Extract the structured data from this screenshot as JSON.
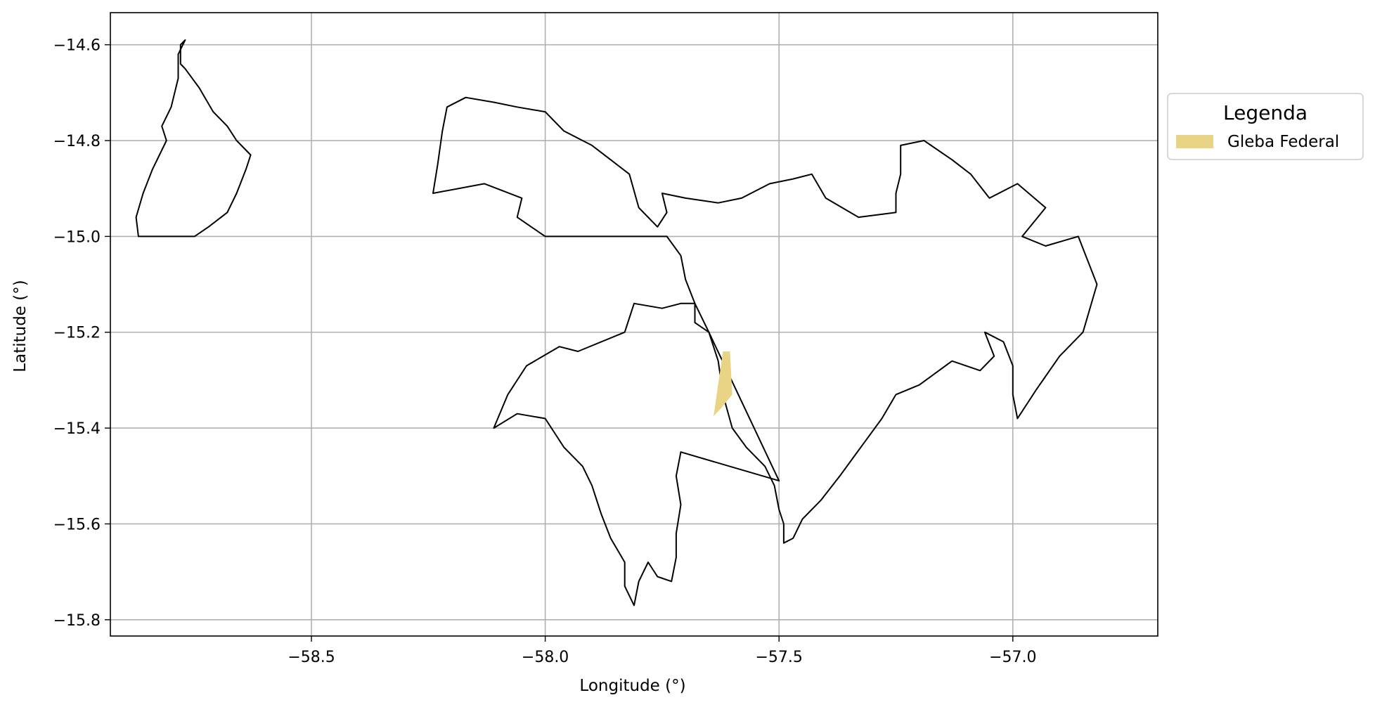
{
  "chart_data": {
    "type": "map",
    "xlabel": "Longitude (°)",
    "ylabel": "Latitude (°)",
    "xlim": [
      -58.93,
      -56.69
    ],
    "ylim": [
      -15.834,
      -14.533
    ],
    "x_ticks": [
      -58.5,
      -58.0,
      -57.5,
      -57.0
    ],
    "x_tick_labels": [
      "−58.5",
      "−58.0",
      "−57.5",
      "−57.0"
    ],
    "y_ticks": [
      -14.6,
      -14.8,
      -15.0,
      -15.2,
      -15.4,
      -15.6,
      -15.8
    ],
    "y_tick_labels": [
      "−14.6",
      "−14.8",
      "−15.0",
      "−15.2",
      "−15.4",
      "−15.6",
      "−15.8"
    ],
    "grid": true,
    "legend": {
      "title": "Legenda",
      "position": "outside-right",
      "entries": [
        {
          "label": "Gleba Federal",
          "color": "#e8d484"
        }
      ]
    },
    "boundary_color": "#000000",
    "grid_color": "#b0b0b0",
    "layers": [
      {
        "name": "boundary-west",
        "kind": "outline",
        "coords": [
          [
            -58.77,
            -14.59
          ],
          [
            -58.78,
            -14.6
          ],
          [
            -58.78,
            -14.64
          ],
          [
            -58.77,
            -14.65
          ],
          [
            -58.74,
            -14.69
          ],
          [
            -58.71,
            -14.74
          ],
          [
            -58.68,
            -14.77
          ],
          [
            -58.66,
            -14.8
          ],
          [
            -58.63,
            -14.83
          ],
          [
            -58.64,
            -14.86
          ],
          [
            -58.66,
            -14.91
          ],
          [
            -58.68,
            -14.95
          ],
          [
            -58.72,
            -14.98
          ],
          [
            -58.75,
            -15.0
          ],
          [
            -58.87,
            -15.0
          ],
          [
            -58.875,
            -14.96
          ],
          [
            -58.86,
            -14.91
          ],
          [
            -58.84,
            -14.86
          ],
          [
            -58.81,
            -14.8
          ],
          [
            -58.82,
            -14.77
          ],
          [
            -58.8,
            -14.73
          ],
          [
            -58.785,
            -14.67
          ],
          [
            -58.785,
            -14.62
          ],
          [
            -58.77,
            -14.59
          ]
        ]
      },
      {
        "name": "boundary-main",
        "kind": "outline",
        "coords": [
          [
            -58.24,
            -14.91
          ],
          [
            -58.13,
            -14.89
          ],
          [
            -58.05,
            -14.92
          ],
          [
            -58.06,
            -14.96
          ],
          [
            -58.03,
            -14.98
          ],
          [
            -58.0,
            -15.0
          ],
          [
            -57.74,
            -15.0
          ],
          [
            -57.71,
            -15.04
          ],
          [
            -57.7,
            -15.09
          ],
          [
            -57.68,
            -15.14
          ],
          [
            -57.68,
            -15.18
          ],
          [
            -57.65,
            -15.2
          ],
          [
            -57.63,
            -15.26
          ],
          [
            -57.62,
            -15.33
          ],
          [
            -57.6,
            -15.4
          ],
          [
            -57.57,
            -15.44
          ],
          [
            -57.53,
            -15.48
          ],
          [
            -57.51,
            -15.52
          ],
          [
            -57.5,
            -15.57
          ],
          [
            -57.49,
            -15.6
          ],
          [
            -57.49,
            -15.64
          ],
          [
            -57.47,
            -15.63
          ],
          [
            -57.45,
            -15.59
          ],
          [
            -57.41,
            -15.55
          ],
          [
            -57.37,
            -15.5
          ],
          [
            -57.34,
            -15.46
          ],
          [
            -57.31,
            -15.42
          ],
          [
            -57.28,
            -15.38
          ],
          [
            -57.25,
            -15.33
          ],
          [
            -57.2,
            -15.31
          ],
          [
            -57.13,
            -15.26
          ],
          [
            -57.07,
            -15.28
          ],
          [
            -57.04,
            -15.25
          ],
          [
            -57.06,
            -15.2
          ],
          [
            -57.02,
            -15.22
          ],
          [
            -57.0,
            -15.27
          ],
          [
            -57.0,
            -15.33
          ],
          [
            -56.99,
            -15.38
          ],
          [
            -56.95,
            -15.32
          ],
          [
            -56.9,
            -15.25
          ],
          [
            -56.85,
            -15.2
          ],
          [
            -56.82,
            -15.1
          ],
          [
            -56.84,
            -15.05
          ],
          [
            -56.86,
            -15.0
          ],
          [
            -56.93,
            -15.02
          ],
          [
            -56.98,
            -15.0
          ],
          [
            -56.93,
            -14.94
          ],
          [
            -56.99,
            -14.89
          ],
          [
            -57.05,
            -14.92
          ],
          [
            -57.09,
            -14.87
          ],
          [
            -57.13,
            -14.84
          ],
          [
            -57.19,
            -14.8
          ],
          [
            -57.24,
            -14.81
          ],
          [
            -57.24,
            -14.87
          ],
          [
            -57.25,
            -14.91
          ],
          [
            -57.25,
            -14.95
          ],
          [
            -57.33,
            -14.96
          ],
          [
            -57.4,
            -14.92
          ],
          [
            -57.43,
            -14.87
          ],
          [
            -57.47,
            -14.88
          ],
          [
            -57.52,
            -14.89
          ],
          [
            -57.58,
            -14.92
          ],
          [
            -57.63,
            -14.93
          ],
          [
            -57.7,
            -14.92
          ],
          [
            -57.75,
            -14.91
          ],
          [
            -57.74,
            -14.95
          ],
          [
            -57.76,
            -14.98
          ],
          [
            -57.8,
            -14.94
          ],
          [
            -57.82,
            -14.87
          ],
          [
            -57.86,
            -14.84
          ],
          [
            -57.9,
            -14.81
          ],
          [
            -57.96,
            -14.78
          ],
          [
            -58.0,
            -14.74
          ],
          [
            -58.06,
            -14.73
          ],
          [
            -58.11,
            -14.72
          ],
          [
            -58.17,
            -14.71
          ],
          [
            -58.21,
            -14.73
          ],
          [
            -58.22,
            -14.78
          ],
          [
            -58.23,
            -14.85
          ],
          [
            -58.24,
            -14.91
          ]
        ]
      },
      {
        "name": "boundary-south",
        "kind": "outline",
        "coords": [
          [
            -57.5,
            -15.51
          ],
          [
            -57.71,
            -15.45
          ],
          [
            -57.72,
            -15.5
          ],
          [
            -57.71,
            -15.56
          ],
          [
            -57.72,
            -15.62
          ],
          [
            -57.72,
            -15.67
          ],
          [
            -57.73,
            -15.72
          ],
          [
            -57.76,
            -15.71
          ],
          [
            -57.78,
            -15.68
          ],
          [
            -57.8,
            -15.72
          ],
          [
            -57.81,
            -15.77
          ],
          [
            -57.83,
            -15.73
          ],
          [
            -57.83,
            -15.68
          ],
          [
            -57.86,
            -15.63
          ],
          [
            -57.88,
            -15.58
          ],
          [
            -57.9,
            -15.52
          ],
          [
            -57.92,
            -15.48
          ],
          [
            -57.96,
            -15.44
          ],
          [
            -58.0,
            -15.38
          ],
          [
            -58.06,
            -15.37
          ],
          [
            -58.11,
            -15.4
          ],
          [
            -58.08,
            -15.33
          ],
          [
            -58.04,
            -15.27
          ],
          [
            -57.97,
            -15.23
          ],
          [
            -57.93,
            -15.24
          ],
          [
            -57.83,
            -15.2
          ],
          [
            -57.81,
            -15.14
          ],
          [
            -57.75,
            -15.15
          ],
          [
            -57.71,
            -15.14
          ],
          [
            -57.68,
            -15.14
          ],
          [
            -57.65,
            -15.2
          ]
        ]
      },
      {
        "name": "gleba-federal",
        "kind": "fill",
        "color": "#e8d484",
        "coords": [
          [
            -57.62,
            -15.24
          ],
          [
            -57.605,
            -15.24
          ],
          [
            -57.6,
            -15.33
          ],
          [
            -57.625,
            -15.36
          ],
          [
            -57.64,
            -15.375
          ],
          [
            -57.62,
            -15.24
          ]
        ]
      }
    ]
  }
}
